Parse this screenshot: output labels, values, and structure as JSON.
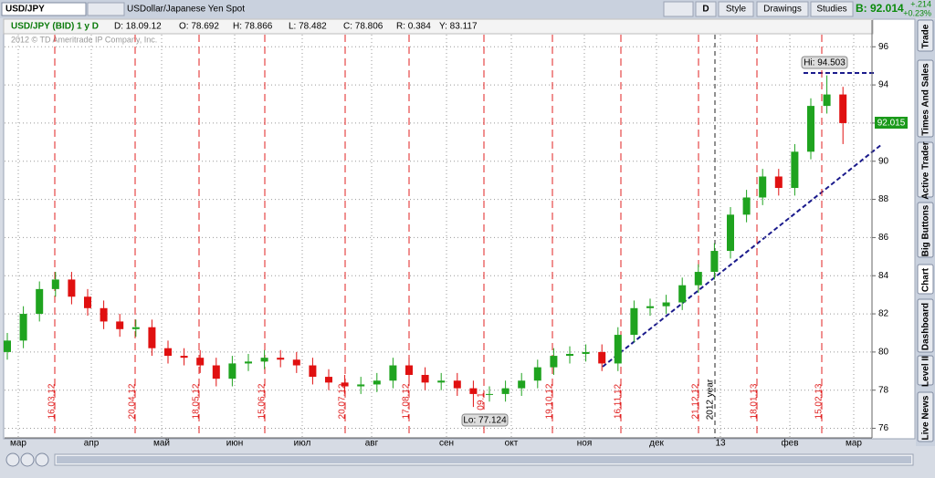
{
  "toolbar": {
    "symbol": "USD/JPY",
    "description": "USDollar/Japanese Yen Spot",
    "period": "D",
    "buttons": [
      "Style",
      "Drawings",
      "Studies"
    ],
    "bid": "B: 92.014",
    "change": "+.214",
    "change_pct": "+0.23%"
  },
  "side_tabs": [
    "Trade",
    "Times And Sales",
    "Active Trader",
    "Big Buttons",
    "Chart",
    "Dashboard",
    "Level II",
    "Live News"
  ],
  "chart_data": {
    "type": "candlestick",
    "header": [
      "USD/JPY (BID) 1 y D",
      "D: 18.09.12",
      "O: 78.692",
      "H: 78.866",
      "L: 78.482",
      "C: 78.806",
      "R: 0.384",
      "Y: 83.117"
    ],
    "copyright": "2012 © TD Ameritrade IP Company, Inc.",
    "open": [
      80.0,
      80.6,
      82.0,
      83.3,
      83.8,
      82.9,
      82.3,
      81.6,
      81.2,
      81.3,
      80.2,
      79.8,
      79.7,
      79.3,
      78.6,
      79.4,
      79.5,
      79.7,
      79.6,
      79.3,
      78.7,
      78.4,
      78.2,
      78.3,
      78.5,
      79.3,
      78.8,
      78.4,
      78.5,
      78.1,
      77.8,
      77.8,
      78.1,
      78.5,
      79.2,
      79.8,
      79.9,
      80.0,
      79.4,
      80.9,
      82.3,
      82.4,
      82.6,
      83.5,
      84.2,
      85.3,
      87.2,
      88.1,
      89.2,
      88.6,
      90.5,
      92.9,
      93.5
    ],
    "high": [
      81.0,
      82.4,
      83.7,
      84.2,
      84.2,
      83.3,
      82.7,
      82.0,
      81.7,
      81.7,
      80.6,
      80.2,
      80.1,
      79.7,
      79.8,
      79.9,
      80.1,
      80.1,
      80.0,
      79.7,
      79.1,
      78.8,
      78.7,
      78.9,
      79.7,
      79.7,
      79.2,
      78.9,
      78.9,
      78.5,
      78.2,
      78.5,
      78.9,
      79.6,
      80.2,
      80.3,
      80.4,
      80.4,
      81.3,
      82.7,
      82.8,
      83.0,
      83.9,
      84.6,
      85.7,
      87.6,
      88.5,
      89.6,
      89.6,
      90.9,
      93.3,
      94.5,
      93.9
    ],
    "low": [
      79.6,
      80.2,
      81.6,
      82.9,
      82.5,
      81.9,
      81.2,
      80.8,
      80.8,
      79.8,
      79.4,
      79.3,
      78.9,
      78.2,
      78.2,
      79.0,
      79.1,
      79.2,
      78.9,
      78.3,
      78.0,
      77.8,
      77.8,
      77.9,
      78.1,
      78.4,
      78.0,
      78.0,
      77.7,
      77.12,
      77.4,
      77.4,
      77.7,
      78.1,
      78.8,
      79.4,
      79.5,
      79.0,
      79.0,
      80.5,
      81.9,
      82.0,
      82.2,
      83.1,
      83.8,
      84.9,
      86.8,
      87.7,
      88.2,
      88.2,
      90.1,
      92.5,
      90.9
    ],
    "close": [
      80.6,
      82.0,
      83.3,
      83.8,
      82.9,
      82.3,
      81.6,
      81.2,
      81.3,
      80.2,
      79.8,
      79.7,
      79.3,
      78.6,
      79.4,
      79.5,
      79.7,
      79.6,
      79.3,
      78.7,
      78.4,
      78.2,
      78.3,
      78.5,
      79.3,
      78.8,
      78.4,
      78.5,
      78.1,
      77.8,
      77.8,
      78.1,
      78.5,
      79.2,
      79.8,
      79.9,
      80.0,
      79.4,
      80.9,
      82.3,
      82.4,
      82.6,
      83.5,
      84.2,
      85.3,
      87.2,
      88.1,
      89.2,
      88.6,
      90.5,
      92.9,
      93.5,
      92.0
    ],
    "up_color": "#1fa31f",
    "down_color": "#e01010",
    "ylim": [
      75.5,
      97.4
    ],
    "yticks": [
      76,
      78,
      80,
      82,
      84,
      86,
      88,
      90,
      92,
      94,
      96
    ],
    "grid": true,
    "x_labels": [
      "мар",
      "апр",
      "май",
      "июн",
      "июл",
      "авг",
      "сен",
      "окт",
      "ноя",
      "дек",
      "13",
      "фев",
      "мар"
    ],
    "event_labels": [
      "16.03.12",
      "20.04.12",
      "18.05.12",
      "15.06.12",
      "20.07.12",
      "17.08.12",
      "09.1",
      "19.10.12",
      "16.11.12",
      "21.12.12",
      "18.01.13",
      "15.02.13"
    ],
    "year_label": "2012 year",
    "hi_label": "Hi: 94.503",
    "lo_label": "Lo: 77.124",
    "last_label": "92.015"
  }
}
